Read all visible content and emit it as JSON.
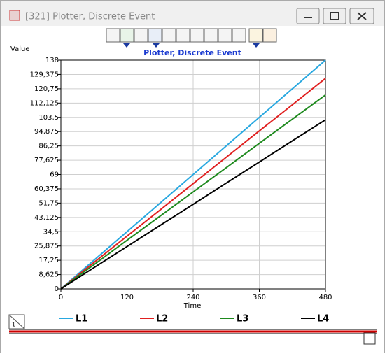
{
  "window": {
    "title": "[321]  Plotter, Discrete Event",
    "corner_label": "1"
  },
  "chart_data": {
    "type": "line",
    "title": "Plotter, Discrete Event",
    "x_label": "Time",
    "y_label": "Value",
    "x": [
      0,
      60,
      120,
      180,
      240,
      300,
      360,
      420,
      480
    ],
    "series": [
      {
        "name": "L1",
        "color": "#29a8e0",
        "values": [
          0,
          17.25,
          34.5,
          51.75,
          69,
          86.25,
          103.5,
          120.75,
          138
        ]
      },
      {
        "name": "L2",
        "color": "#e02020",
        "values": [
          0,
          15.9,
          31.8,
          47.6,
          63.5,
          79.4,
          95.3,
          111.1,
          127
        ]
      },
      {
        "name": "L3",
        "color": "#1e8a1e",
        "values": [
          0,
          14.6,
          29.3,
          43.9,
          58.5,
          73.1,
          87.8,
          102.4,
          117
        ]
      },
      {
        "name": "L4",
        "color": "#000000",
        "values": [
          0,
          12.8,
          25.5,
          38.3,
          51,
          63.8,
          76.5,
          89.3,
          102
        ]
      }
    ],
    "xlim": [
      0,
      480
    ],
    "xticks": [
      0,
      120,
      240,
      360,
      480
    ],
    "ylim": [
      0,
      138
    ],
    "yticks": [
      0,
      {
        "value": 8.625,
        "label": "8,625"
      },
      {
        "value": 17.25,
        "label": "17,25"
      },
      {
        "value": 25.875,
        "label": "25,875"
      },
      {
        "value": 34.5,
        "label": "34,5"
      },
      {
        "value": 43.125,
        "label": "43,125"
      },
      {
        "value": 51.75,
        "label": "51,75"
      },
      {
        "value": 60.375,
        "label": "60,375"
      },
      69,
      {
        "value": 77.625,
        "label": "77,625"
      },
      {
        "value": 86.25,
        "label": "86,25"
      },
      {
        "value": 94.875,
        "label": "94,875"
      },
      {
        "value": 103.5,
        "label": "103,5"
      },
      {
        "value": 112.125,
        "label": "112,125"
      },
      {
        "value": 120.75,
        "label": "120,75"
      },
      {
        "value": 129.375,
        "label": "129,375"
      },
      138
    ],
    "grid": true
  }
}
